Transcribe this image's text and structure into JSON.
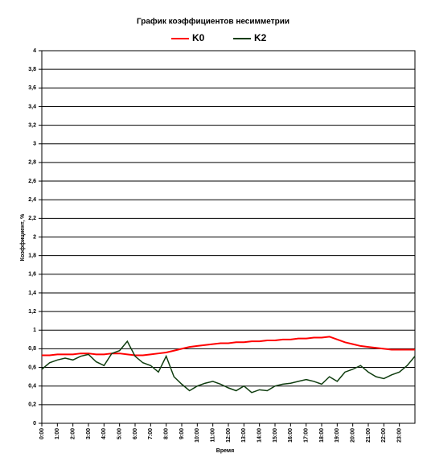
{
  "chart_data": {
    "type": "line",
    "title": "График коэффициентов несимметрии",
    "ylabel": "Коэффициент, %",
    "xlabel": "Время",
    "x": [
      0,
      0.5,
      1,
      1.5,
      2,
      2.5,
      3,
      3.5,
      4,
      4.5,
      5,
      5.5,
      6,
      6.5,
      7,
      7.5,
      8,
      8.5,
      9,
      9.5,
      10,
      10.5,
      11,
      11.5,
      12,
      12.5,
      13,
      13.5,
      14,
      14.5,
      15,
      15.5,
      16,
      16.5,
      17,
      17.5,
      18,
      18.5,
      19,
      19.5,
      20,
      20.5,
      21,
      21.5,
      22,
      22.5,
      23,
      23.5,
      24
    ],
    "series": [
      {
        "name": "K0",
        "color": "#ff0000",
        "values": [
          0.73,
          0.73,
          0.74,
          0.74,
          0.74,
          0.75,
          0.75,
          0.74,
          0.74,
          0.75,
          0.75,
          0.74,
          0.73,
          0.73,
          0.74,
          0.75,
          0.76,
          0.78,
          0.8,
          0.82,
          0.83,
          0.84,
          0.85,
          0.86,
          0.86,
          0.87,
          0.87,
          0.88,
          0.88,
          0.89,
          0.89,
          0.9,
          0.9,
          0.91,
          0.91,
          0.92,
          0.92,
          0.93,
          0.9,
          0.87,
          0.85,
          0.83,
          0.82,
          0.81,
          0.8,
          0.79,
          0.79,
          0.79,
          0.79
        ]
      },
      {
        "name": "K2",
        "color": "#0f3d0f",
        "values": [
          0.58,
          0.65,
          0.68,
          0.7,
          0.68,
          0.72,
          0.74,
          0.66,
          0.62,
          0.75,
          0.78,
          0.88,
          0.72,
          0.65,
          0.62,
          0.55,
          0.72,
          0.5,
          0.42,
          0.35,
          0.4,
          0.43,
          0.45,
          0.42,
          0.38,
          0.35,
          0.4,
          0.33,
          0.36,
          0.35,
          0.4,
          0.42,
          0.43,
          0.45,
          0.47,
          0.45,
          0.42,
          0.5,
          0.45,
          0.55,
          0.58,
          0.62,
          0.55,
          0.5,
          0.48,
          0.52,
          0.55,
          0.62,
          0.72
        ]
      }
    ],
    "xlim": [
      0,
      24
    ],
    "xticks": [
      {
        "value": 0,
        "label": "0:00"
      },
      {
        "value": 1,
        "label": "1:00"
      },
      {
        "value": 2,
        "label": "2:00"
      },
      {
        "value": 3,
        "label": "3:00"
      },
      {
        "value": 4,
        "label": "4:00"
      },
      {
        "value": 5,
        "label": "5:00"
      },
      {
        "value": 6,
        "label": "6:00"
      },
      {
        "value": 7,
        "label": "7:00"
      },
      {
        "value": 8,
        "label": "8:00"
      },
      {
        "value": 9,
        "label": "9:00"
      },
      {
        "value": 10,
        "label": "10:00"
      },
      {
        "value": 11,
        "label": "11:00"
      },
      {
        "value": 12,
        "label": "12:00"
      },
      {
        "value": 13,
        "label": "13:00"
      },
      {
        "value": 14,
        "label": "14:00"
      },
      {
        "value": 15,
        "label": "15:00"
      },
      {
        "value": 16,
        "label": "16:00"
      },
      {
        "value": 17,
        "label": "17:00"
      },
      {
        "value": 18,
        "label": "18:00"
      },
      {
        "value": 19,
        "label": "19:00"
      },
      {
        "value": 20,
        "label": "20:00"
      },
      {
        "value": 21,
        "label": "21:00"
      },
      {
        "value": 22,
        "label": "22:00"
      },
      {
        "value": 23,
        "label": "23:00"
      }
    ],
    "ylim": [
      0,
      4
    ],
    "yticks": [
      0,
      {
        "value": 0.2,
        "label": "0,2"
      },
      {
        "value": 0.4,
        "label": "0,4"
      },
      {
        "value": 0.6,
        "label": "0,6"
      },
      {
        "value": 0.8,
        "label": "0,8"
      },
      1,
      {
        "value": 1.2,
        "label": "1,2"
      },
      {
        "value": 1.4,
        "label": "1,4"
      },
      {
        "value": 1.6,
        "label": "1,6"
      },
      {
        "value": 1.8,
        "label": "1,8"
      },
      2,
      {
        "value": 2.2,
        "label": "2,2"
      },
      {
        "value": 2.4,
        "label": "2,4"
      },
      {
        "value": 2.6,
        "label": "2,6"
      },
      {
        "value": 2.8,
        "label": "2,8"
      },
      3,
      {
        "value": 3.2,
        "label": "3,2"
      },
      {
        "value": 3.4,
        "label": "3,4"
      },
      {
        "value": 3.6,
        "label": "3,6"
      },
      {
        "value": 3.8,
        "label": "3,8"
      },
      4
    ],
    "grid": true,
    "legend": "top"
  }
}
